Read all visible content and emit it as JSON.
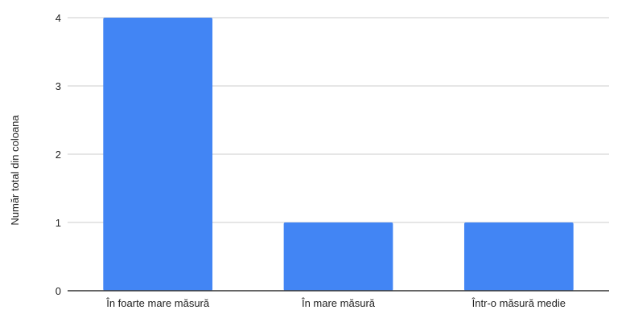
{
  "chart_data": {
    "type": "bar",
    "title": "",
    "xlabel": "",
    "ylabel": "Număr total din coloana",
    "categories": [
      "În foarte mare măsură",
      "În mare măsură",
      "Într-o măsură medie"
    ],
    "values": [
      4,
      1,
      1
    ],
    "ylim": [
      0,
      4
    ],
    "yticks": [
      0,
      1,
      2,
      3,
      4
    ],
    "grid": true,
    "legend": "none",
    "bar_color": "#4285f4",
    "gridline_color": "#cccccc",
    "baseline_color": "#333333"
  }
}
